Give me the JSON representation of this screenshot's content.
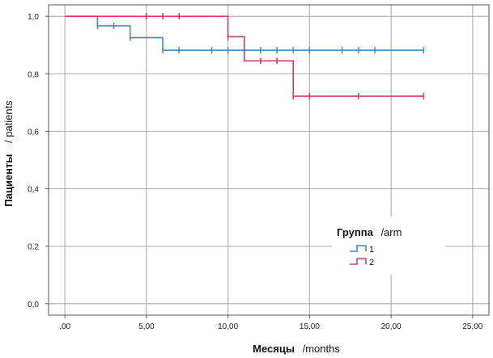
{
  "chart_data": {
    "type": "line",
    "subtype": "kaplan-meier step",
    "xlabel": {
      "main": "Месяцы",
      "sub": "/months"
    },
    "ylabel": {
      "main": "Пациенты",
      "sub": "/ patients"
    },
    "xlim": [
      -1,
      26
    ],
    "ylim": [
      -0.04,
      1.04
    ],
    "xticks": [
      0,
      5,
      10,
      15,
      20,
      25
    ],
    "xtick_labels": [
      ",00",
      "5,00",
      "10,00",
      "15,00",
      "20,00",
      "25,00"
    ],
    "yticks": [
      0,
      0.2,
      0.4,
      0.6,
      0.8,
      1.0
    ],
    "ytick_labels": [
      "0,0",
      "0,2",
      "0,4",
      "0,6",
      "0,8",
      "1,0"
    ],
    "grid": true,
    "legend": {
      "title_main": "Группа",
      "title_sub": "/arm",
      "placement": "lower-right"
    },
    "series": [
      {
        "name": "1",
        "color": "#3a8fc7",
        "steps": [
          [
            0,
            1.0
          ],
          [
            2,
            0.967
          ],
          [
            4,
            0.926
          ],
          [
            6,
            0.882
          ],
          [
            22,
            0.882
          ]
        ],
        "censored": [
          [
            2,
            0.967
          ],
          [
            3,
            0.967
          ],
          [
            4,
            0.926
          ],
          [
            6,
            0.882
          ],
          [
            7,
            0.882
          ],
          [
            9,
            0.882
          ],
          [
            10,
            0.882
          ],
          [
            12,
            0.882
          ],
          [
            13,
            0.882
          ],
          [
            14,
            0.882
          ],
          [
            15,
            0.882
          ],
          [
            17,
            0.882
          ],
          [
            18,
            0.882
          ],
          [
            19,
            0.882
          ],
          [
            22,
            0.882
          ]
        ]
      },
      {
        "name": "2",
        "color": "#d63a6a",
        "steps": [
          [
            0,
            1.0
          ],
          [
            10,
            0.929
          ],
          [
            11,
            0.845
          ],
          [
            14,
            0.722
          ],
          [
            22,
            0.722
          ]
        ],
        "censored": [
          [
            5,
            1.0
          ],
          [
            6,
            1.0
          ],
          [
            7,
            1.0
          ],
          [
            10,
            0.929
          ],
          [
            12,
            0.845
          ],
          [
            13,
            0.845
          ],
          [
            14,
            0.722
          ],
          [
            15,
            0.722
          ],
          [
            18,
            0.722
          ],
          [
            22,
            0.722
          ]
        ]
      }
    ]
  }
}
